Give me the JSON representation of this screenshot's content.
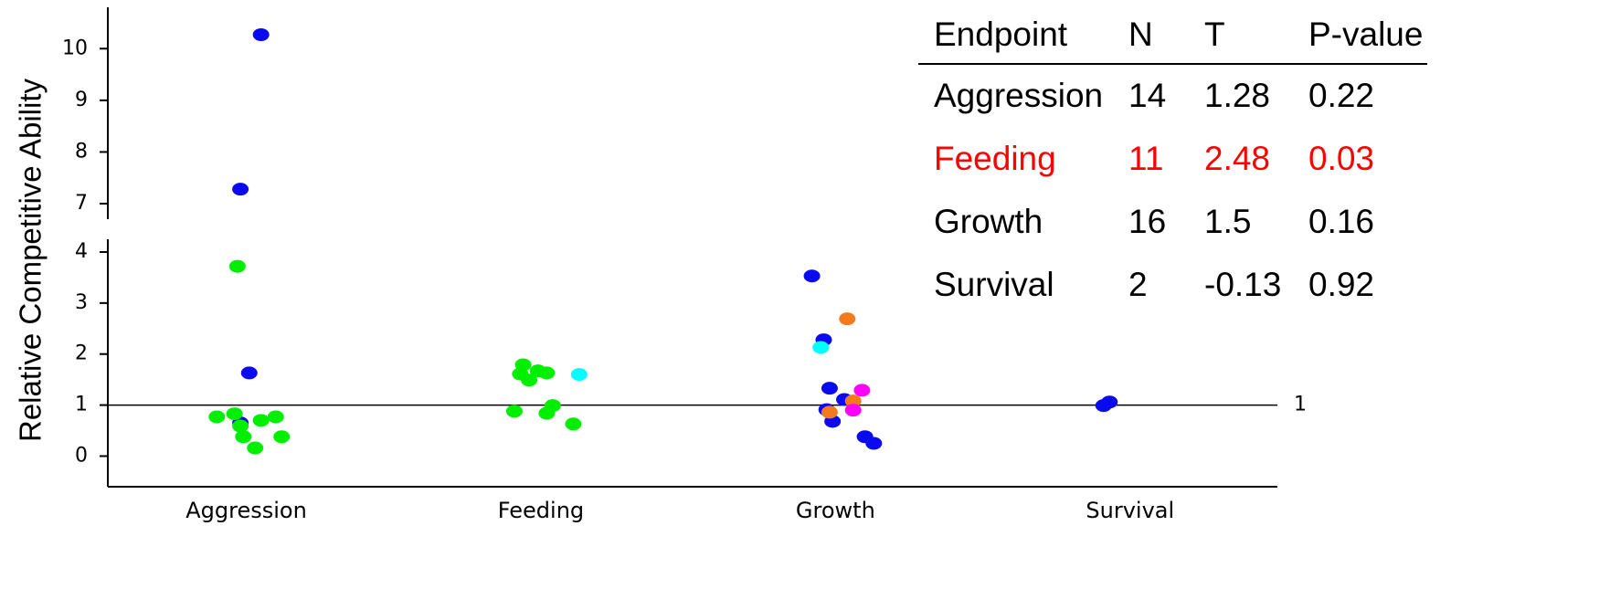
{
  "chart_data": {
    "type": "scatter",
    "y_label": "Relative Competitive Ability",
    "xlim": [
      0.53,
      4.5
    ],
    "xticks": [
      {
        "value": 1,
        "label": "Aggression"
      },
      {
        "value": 2,
        "label": "Feeding"
      },
      {
        "value": 3,
        "label": "Growth"
      },
      {
        "value": 4,
        "label": "Survival"
      }
    ],
    "ylim": [
      -0.6,
      10.8
    ],
    "y_break": [
      4.25,
      6.7
    ],
    "yticks": [
      0,
      1,
      2,
      3,
      4,
      7,
      8,
      9,
      10
    ],
    "reference_line": 1,
    "series": [
      {
        "color": "#0a0af0",
        "x": [
          1.05,
          0.98,
          1.01,
          0.98,
          2.92,
          2.96,
          2.98,
          3.03,
          2.97,
          2.99,
          3.1,
          3.13,
          3.91,
          3.93
        ],
        "values": [
          10.27,
          7.28,
          1.63,
          0.65,
          3.53,
          2.28,
          1.33,
          1.11,
          0.91,
          0.68,
          0.38,
          0.25,
          0.99,
          1.06
        ]
      },
      {
        "color": "#00ee00",
        "x": [
          0.97,
          0.9,
          0.96,
          0.98,
          0.99,
          1.03,
          1.05,
          1.1,
          1.12,
          1.94,
          1.93,
          1.96,
          1.99,
          2.02,
          1.91,
          2.02,
          2.04,
          2.11
        ],
        "values": [
          3.72,
          0.77,
          0.83,
          0.59,
          0.38,
          0.16,
          0.7,
          0.77,
          0.38,
          1.79,
          1.61,
          1.49,
          1.67,
          1.63,
          0.88,
          0.84,
          0.99,
          0.63
        ]
      },
      {
        "color": "#00ffff",
        "x": [
          2.13,
          2.95
        ],
        "values": [
          1.6,
          2.13
        ]
      },
      {
        "color": "#f57a1c",
        "x": [
          3.04,
          3.06,
          2.98
        ],
        "values": [
          2.69,
          1.08,
          0.86
        ]
      },
      {
        "color": "#ff00ff",
        "x": [
          3.09,
          3.06
        ],
        "values": [
          1.29,
          0.9
        ]
      }
    ]
  },
  "table": {
    "columns": [
      "Endpoint",
      "N",
      "T",
      "P-value"
    ],
    "rows": [
      [
        "Aggression",
        14,
        1.28,
        0.22
      ],
      [
        "Feeding",
        11,
        2.48,
        0.03
      ],
      [
        "Growth",
        16,
        1.5,
        0.16
      ],
      [
        "Survival",
        2,
        -0.13,
        0.92
      ]
    ],
    "highlight_row": 1,
    "highlight_color": "#ff0000"
  }
}
